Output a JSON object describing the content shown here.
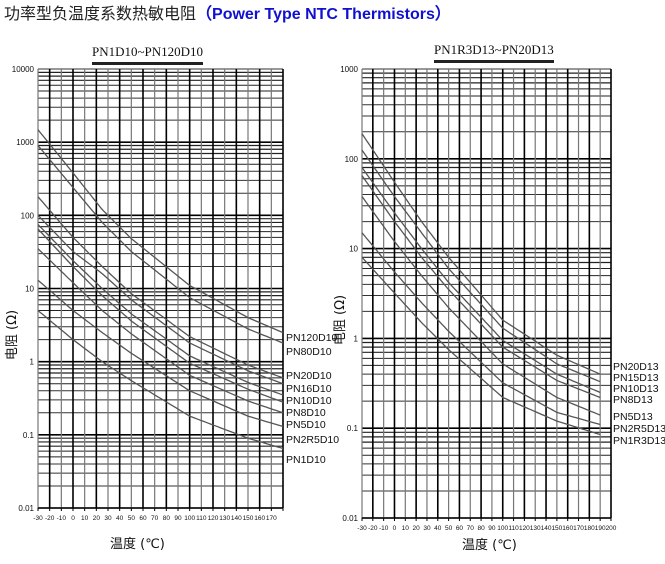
{
  "page": {
    "title_cn": "功率型负温度系数热敏电阻",
    "title_en": "（Power Type NTC Thermistors）"
  },
  "chart_data": [
    {
      "type": "line",
      "title": "PN1D10~PN120D10",
      "xlabel": "温度 (℃)",
      "ylabel": "电阻 (Ω)",
      "yscale": "log",
      "ylim": [
        0.01,
        10000
      ],
      "xlim": [
        -30,
        180
      ],
      "y_ticks": [
        "10000",
        "1000",
        "100",
        "10",
        "1",
        "0.1",
        "0.01"
      ],
      "x_ticks": [
        "-30",
        "-20",
        "-10",
        "0",
        "10",
        "20",
        "30",
        "40",
        "50",
        "60",
        "70",
        "80",
        "90",
        "100",
        "110",
        "120",
        "130",
        "140",
        "150",
        "160",
        "170"
      ],
      "grid": true,
      "legend_position": "right-end-labels",
      "x": [
        -30,
        0,
        25,
        50,
        100,
        150,
        180
      ],
      "series": [
        {
          "name": "PN120D10",
          "values": [
            1480,
            380,
            120,
            48,
            11,
            4.0,
            2.5
          ]
        },
        {
          "name": "PN80D10",
          "values": [
            900,
            240,
            80,
            32,
            7.5,
            2.8,
            1.8
          ]
        },
        {
          "name": "PN20D10",
          "values": [
            180,
            50,
            20,
            8.5,
            2.2,
            0.9,
            0.6
          ]
        },
        {
          "name": "PN16D10",
          "values": [
            100,
            32,
            16,
            7.0,
            1.8,
            0.75,
            0.5
          ]
        },
        {
          "name": "PN10D10",
          "values": [
            75,
            24,
            10,
            4.5,
            1.2,
            0.52,
            0.35
          ]
        },
        {
          "name": "PN8D10",
          "values": [
            65,
            20,
            8,
            3.6,
            0.95,
            0.42,
            0.28
          ]
        },
        {
          "name": "PN5D10",
          "values": [
            35,
            12,
            5,
            2.4,
            0.65,
            0.29,
            0.2
          ]
        },
        {
          "name": "PN2R5D10",
          "values": [
            13,
            5,
            2.5,
            1.3,
            0.4,
            0.18,
            0.13
          ]
        },
        {
          "name": "PN1D10",
          "values": [
            5,
            2.0,
            1.0,
            0.55,
            0.18,
            0.09,
            0.065
          ]
        }
      ]
    },
    {
      "type": "line",
      "title": "PN1R3D13~PN20D13",
      "xlabel": "温度 (℃)",
      "ylabel": "电阻 (Ω)",
      "yscale": "log",
      "ylim": [
        0.01,
        1000
      ],
      "xlim": [
        -30,
        200
      ],
      "y_ticks": [
        "1000",
        "100",
        "10",
        "1",
        "0.1",
        "0.01"
      ],
      "x_ticks": [
        "-30",
        "-20",
        "-10",
        "0",
        "10",
        "20",
        "30",
        "40",
        "50",
        "60",
        "70",
        "80",
        "90",
        "100",
        "110",
        "120",
        "130",
        "140",
        "150",
        "160",
        "170",
        "180",
        "190",
        "200"
      ],
      "grid": true,
      "legend_position": "right-end-labels",
      "x": [
        -30,
        0,
        25,
        50,
        100,
        150,
        190
      ],
      "series": [
        {
          "name": "PN20D13",
          "values": [
            190,
            55,
            20,
            8,
            1.6,
            0.65,
            0.4
          ]
        },
        {
          "name": "PN15D13",
          "values": [
            125,
            38,
            15,
            6,
            1.3,
            0.52,
            0.33
          ]
        },
        {
          "name": "PN10D13",
          "values": [
            80,
            25,
            10,
            4.2,
            0.95,
            0.4,
            0.25
          ]
        },
        {
          "name": "PN8D13",
          "values": [
            65,
            20,
            8,
            3.5,
            0.8,
            0.34,
            0.22
          ]
        },
        {
          "name": "PN5D13",
          "values": [
            38,
            12,
            5,
            2.2,
            0.52,
            0.22,
            0.14
          ]
        },
        {
          "name": "PN2R5D13",
          "values": [
            15,
            5.5,
            2.5,
            1.2,
            0.32,
            0.15,
            0.11
          ]
        },
        {
          "name": "PN1R3D13",
          "values": [
            8,
            3.2,
            1.5,
            0.75,
            0.22,
            0.12,
            0.085
          ]
        }
      ]
    }
  ]
}
